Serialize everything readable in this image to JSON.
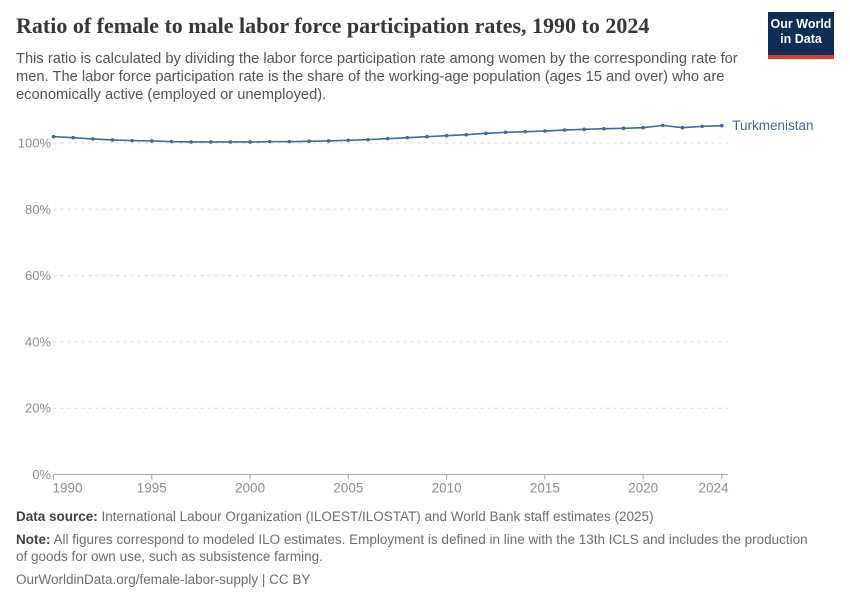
{
  "header": {
    "title": "Ratio of female to male labor force participation rates, 1990 to 2024",
    "subtitle": "This ratio is calculated by dividing the labor force participation rate among women by the corresponding rate for men. The labor force participation rate is the share of the working-age population (ages 15 and over) who are economically active (employed or unemployed).",
    "logo": {
      "line1": "Our World",
      "line2": "in Data"
    }
  },
  "chart_data": {
    "type": "line",
    "title": "Ratio of female to male labor force participation rates",
    "xlabel": "",
    "ylabel": "",
    "x": [
      1990,
      1991,
      1992,
      1993,
      1994,
      1995,
      1996,
      1997,
      1998,
      1999,
      2000,
      2001,
      2002,
      2003,
      2004,
      2005,
      2006,
      2007,
      2008,
      2009,
      2010,
      2011,
      2012,
      2013,
      2014,
      2015,
      2016,
      2017,
      2018,
      2019,
      2020,
      2021,
      2022,
      2023,
      2024
    ],
    "series": [
      {
        "name": "Turkmenistan",
        "color": "#44679e",
        "values": [
          101.9,
          101.6,
          101.2,
          100.9,
          100.7,
          100.6,
          100.4,
          100.3,
          100.3,
          100.3,
          100.3,
          100.4,
          100.4,
          100.5,
          100.6,
          100.8,
          101.0,
          101.3,
          101.6,
          101.9,
          102.2,
          102.5,
          102.9,
          103.2,
          103.4,
          103.6,
          103.9,
          104.1,
          104.3,
          104.4,
          104.6,
          105.3,
          104.6,
          105.0,
          105.2
        ]
      }
    ],
    "ylim": [
      0,
      106
    ],
    "y_ticks": [
      0,
      20,
      40,
      60,
      80,
      100
    ],
    "y_tick_suffix": "%",
    "x_ticks": [
      1990,
      1995,
      2000,
      2005,
      2010,
      2015,
      2020,
      2024
    ],
    "grid": "horizontal-dashed",
    "legend_position": "end-of-line-label"
  },
  "footer": {
    "data_source_label": "Data source:",
    "data_source": "International Labour Organization (ILOEST/ILOSTAT) and World Bank staff estimates (2025)",
    "note_label": "Note:",
    "note": "All figures correspond to modeled ILO estimates. Employment is defined in line with the 13th ICLS and includes the production of goods for own use, such as subsistence farming.",
    "url": "OurWorldinData.org/female-labor-supply | CC BY"
  },
  "colors": {
    "series": "#44679e",
    "axis": "#a5a5a5",
    "gridline": "#dadada",
    "tick_label": "#8e8e8e",
    "logo_bg": "#0f2e57",
    "logo_red": "#e0392f"
  }
}
